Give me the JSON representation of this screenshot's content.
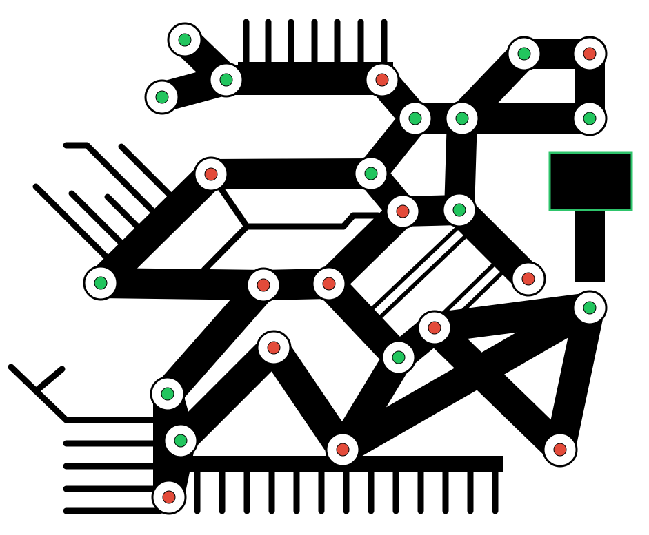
{
  "diagram": {
    "background": "#ffffff",
    "stroke_color": "#000000",
    "node_fill": "#ffffff",
    "node_outline": "#000000",
    "status_colors": {
      "active": "#22c55e",
      "fault": "#e34b3a"
    },
    "component_outline": "#2ec46b",
    "nodes": [
      {
        "id": "n1",
        "status": "active"
      },
      {
        "id": "n2",
        "status": "active"
      },
      {
        "id": "n3",
        "status": "active"
      },
      {
        "id": "n4",
        "status": "fault"
      },
      {
        "id": "n5",
        "status": "active"
      },
      {
        "id": "n6",
        "status": "fault"
      },
      {
        "id": "n7",
        "status": "active"
      },
      {
        "id": "n8",
        "status": "active"
      },
      {
        "id": "n9",
        "status": "active"
      },
      {
        "id": "n10",
        "status": "fault"
      },
      {
        "id": "n11",
        "status": "active"
      },
      {
        "id": "n12",
        "status": "fault"
      },
      {
        "id": "n13",
        "status": "active"
      },
      {
        "id": "n14",
        "status": "active"
      },
      {
        "id": "n15",
        "status": "fault"
      },
      {
        "id": "n16",
        "status": "fault"
      },
      {
        "id": "n17",
        "status": "fault"
      },
      {
        "id": "n18",
        "status": "active"
      },
      {
        "id": "n19",
        "status": "fault"
      },
      {
        "id": "n20",
        "status": "fault"
      },
      {
        "id": "n21",
        "status": "active"
      },
      {
        "id": "n22",
        "status": "active"
      },
      {
        "id": "n23",
        "status": "active"
      },
      {
        "id": "n24",
        "status": "fault"
      },
      {
        "id": "n25",
        "status": "fault"
      },
      {
        "id": "n26",
        "status": "fault"
      }
    ],
    "links": [
      [
        "n1",
        "n3"
      ],
      [
        "n2",
        "n3"
      ],
      [
        "n3",
        "n4"
      ],
      [
        "n4",
        "n7"
      ],
      [
        "n7",
        "n8"
      ],
      [
        "n8",
        "n9"
      ],
      [
        "n8",
        "n5"
      ],
      [
        "n5",
        "n6"
      ],
      [
        "n6",
        "n9"
      ],
      [
        "n8",
        "n14"
      ],
      [
        "n7",
        "n11"
      ],
      [
        "n10",
        "n11"
      ],
      [
        "n10",
        "n13"
      ],
      [
        "n11",
        "n12"
      ],
      [
        "n12",
        "n14"
      ],
      [
        "n14",
        "n15"
      ],
      [
        "n12",
        "n17"
      ],
      [
        "n13",
        "n16"
      ],
      [
        "n16",
        "n17"
      ],
      [
        "n17",
        "n23"
      ],
      [
        "n16",
        "n21"
      ],
      [
        "n21",
        "n22"
      ],
      [
        "n22",
        "n26"
      ],
      [
        "n22",
        "n20"
      ],
      [
        "n20",
        "n24"
      ],
      [
        "n24",
        "n23"
      ],
      [
        "n23",
        "n19"
      ],
      [
        "n19",
        "n25"
      ],
      [
        "n19",
        "n18"
      ],
      [
        "n24",
        "n18"
      ],
      [
        "n18",
        "n25"
      ]
    ],
    "component": {
      "id": "green-outlined-block"
    }
  }
}
